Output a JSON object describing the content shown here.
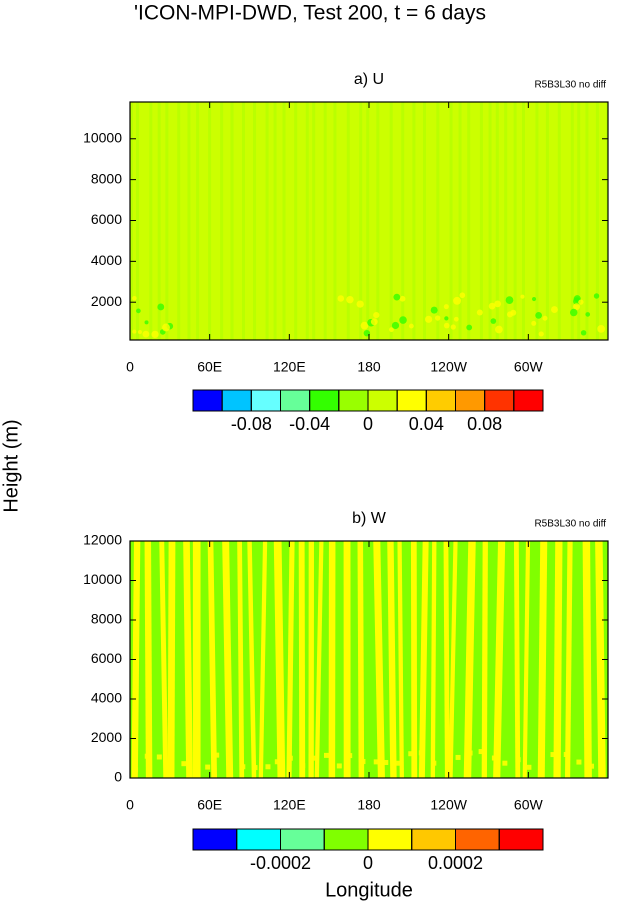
{
  "title": "'ICON-MPI-DWD, Test 200, t = 6 days",
  "ylabel": "Height (m)",
  "xlabel": "Longitude",
  "chart_data": [
    {
      "type": "contour",
      "title": "a) U",
      "annotation": "R5B3L30 no diff",
      "xlim": [
        0,
        360
      ],
      "xticks": [
        0,
        {
          "value": 60,
          "label": "60E"
        },
        {
          "value": 120,
          "label": "120E"
        },
        180,
        {
          "value": 240,
          "label": "120W"
        },
        {
          "value": 300,
          "label": "60W"
        }
      ],
      "ylim": [
        150,
        11800
      ],
      "yticks": [
        2000,
        4000,
        6000,
        8000,
        10000
      ],
      "colorbar": {
        "colors": [
          "#0000ff",
          "#00c4ff",
          "#66ffff",
          "#66ff99",
          "#33ff00",
          "#99ff00",
          "#ccff00",
          "#ffff00",
          "#ffcc00",
          "#ff9900",
          "#ff3300",
          "#ff0000"
        ],
        "levels": [
          -0.1,
          -0.08,
          -0.06,
          -0.04,
          -0.02,
          0,
          0.02,
          0.04,
          0.06,
          0.08,
          0.1
        ],
        "ticks": [
          -0.08,
          -0.04,
          0,
          0.04,
          0.08
        ]
      }
    },
    {
      "type": "contour",
      "title": "b) W",
      "annotation": "R5B3L30 no diff",
      "xlim": [
        0,
        360
      ],
      "xticks": [
        0,
        {
          "value": 60,
          "label": "60E"
        },
        {
          "value": 120,
          "label": "120E"
        },
        180,
        {
          "value": 240,
          "label": "120W"
        },
        {
          "value": 300,
          "label": "60W"
        }
      ],
      "ylim": [
        0,
        12000
      ],
      "yticks": [
        0,
        2000,
        4000,
        6000,
        8000,
        10000,
        12000
      ],
      "colorbar": {
        "colors": [
          "#0000ff",
          "#00ffff",
          "#66ff99",
          "#80ff00",
          "#ffff00",
          "#ffc800",
          "#ff6400",
          "#ff0000"
        ],
        "levels": [
          -0.0003,
          -0.0002,
          -0.0001,
          0,
          0.0001,
          0.0002,
          0.0003
        ],
        "ticks": [
          -0.0002,
          0,
          0.0002
        ]
      }
    }
  ]
}
